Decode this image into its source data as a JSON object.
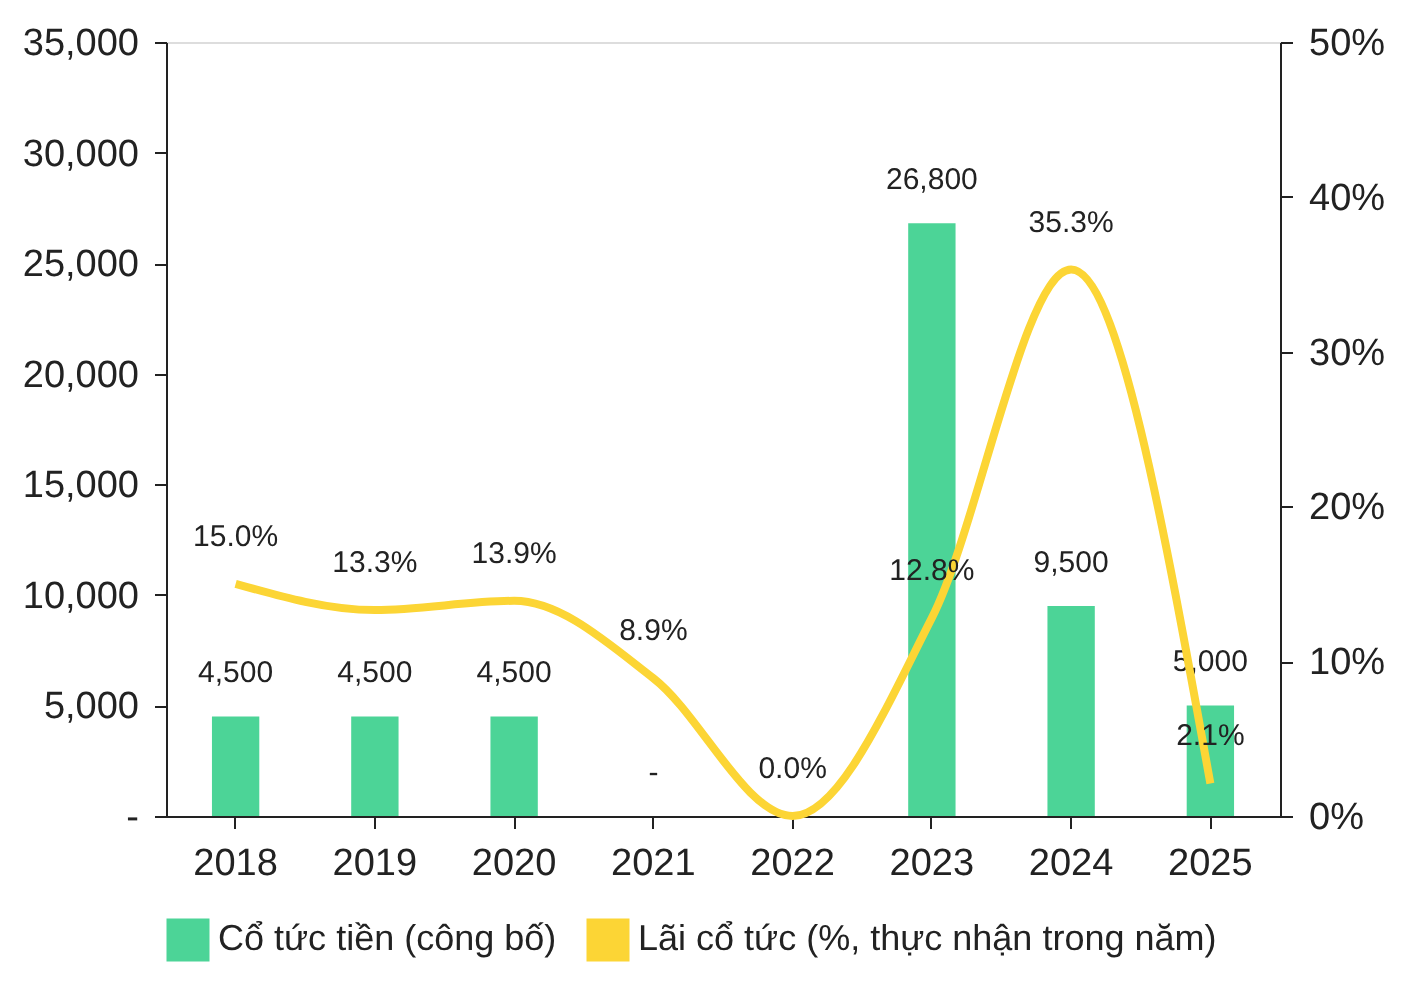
{
  "chart_data": {
    "type": "bar",
    "categories": [
      "2018",
      "2019",
      "2020",
      "2021",
      "2022",
      "2023",
      "2024",
      "2025"
    ],
    "series": [
      {
        "name": "Cổ tức tiền (công bố)",
        "color": "#4cd497",
        "values": [
          4500,
          4500,
          4500,
          0,
          null,
          26800,
          9500,
          5000
        ],
        "value_labels": [
          "4,500",
          "4,500",
          "4,500",
          "-",
          null,
          "26,800",
          "9,500",
          "5,000"
        ]
      },
      {
        "name": "Lãi cổ tức (%, thực nhận trong năm)",
        "type": "line",
        "axis": "y2",
        "color": "#fcd535",
        "values": [
          15.0,
          13.3,
          13.9,
          8.9,
          0.0,
          12.8,
          35.3,
          2.1
        ],
        "value_labels": [
          "15.0%",
          "13.3%",
          "13.9%",
          "8.9%",
          "0.0%",
          "12.8%",
          "35.3%",
          "2.1%"
        ]
      }
    ],
    "ylim": [
      0,
      35000
    ],
    "yticks": [
      {
        "value": 0,
        "label": "-"
      },
      {
        "value": 5000,
        "label": "5,000"
      },
      {
        "value": 10000,
        "label": "10,000"
      },
      {
        "value": 15000,
        "label": "15,000"
      },
      {
        "value": 20000,
        "label": "20,000"
      },
      {
        "value": 25000,
        "label": "25,000"
      },
      {
        "value": 30000,
        "label": "30,000"
      },
      {
        "value": 35000,
        "label": "35,000"
      }
    ],
    "y2lim": [
      0,
      50
    ],
    "y2ticks": [
      {
        "value": 0,
        "label": "0%"
      },
      {
        "value": 10,
        "label": "10%"
      },
      {
        "value": 20,
        "label": "20%"
      },
      {
        "value": 30,
        "label": "30%"
      },
      {
        "value": 40,
        "label": "40%"
      },
      {
        "value": 50,
        "label": "50%"
      }
    ],
    "grid": false,
    "legend": "bottom"
  }
}
